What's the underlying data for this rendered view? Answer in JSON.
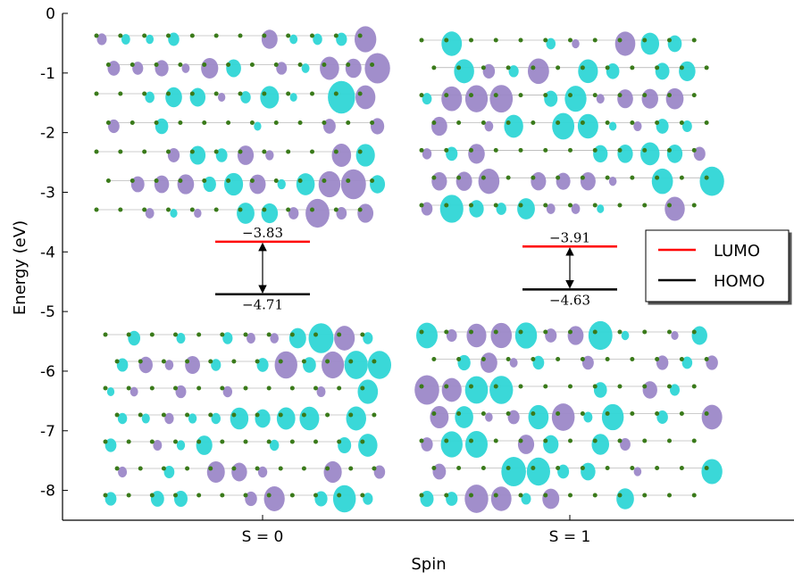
{
  "chart_data": {
    "type": "levels",
    "ylabel": "Energy (eV)",
    "xlabel": "Spin",
    "categories": [
      "S = 0",
      "S = 1"
    ],
    "ylim": [
      -8.5,
      0
    ],
    "yticks": [
      0,
      -1,
      -2,
      -3,
      -4,
      -5,
      -6,
      -7,
      -8
    ],
    "legend": "right",
    "series": [
      {
        "name": "LUMO",
        "color": "#ff0000",
        "values": [
          -3.83,
          -3.91
        ],
        "value_labels": [
          "−3.83",
          "−3.91"
        ]
      },
      {
        "name": "HOMO",
        "color": "#000000",
        "values": [
          -4.71,
          -4.63
        ],
        "value_labels": [
          "−4.71",
          "−4.63"
        ]
      }
    ]
  }
}
